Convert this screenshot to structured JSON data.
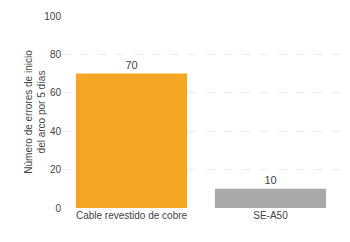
{
  "chart_data": {
    "type": "bar",
    "categories": [
      "Cable revestido de cobre",
      "SE-A50"
    ],
    "values": [
      70,
      10
    ],
    "colors": [
      "#F5A623",
      "#A8A8A8"
    ],
    "ylabel": "Número de errores de inicio\ndel arco por 5 días",
    "ylim": [
      0,
      100
    ],
    "yticks": [
      0,
      20,
      40,
      60,
      80,
      100
    ],
    "grid": true,
    "data_labels": true
  }
}
